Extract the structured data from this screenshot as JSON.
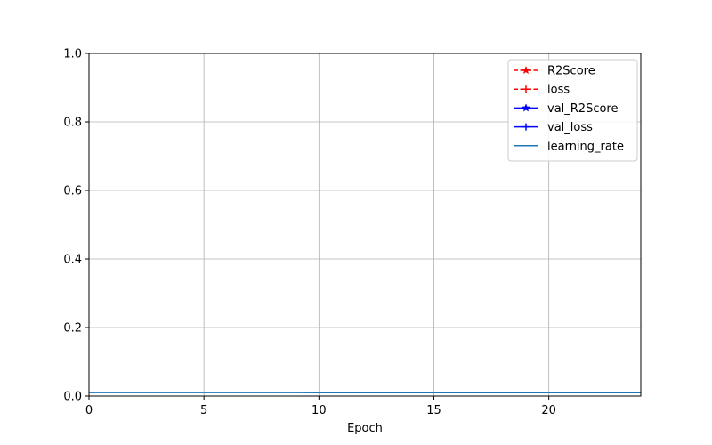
{
  "chart_data": {
    "type": "line",
    "title": "",
    "xlabel": "Epoch",
    "ylabel": "",
    "xlim": [
      0,
      24
    ],
    "ylim": [
      0,
      1
    ],
    "xticks": [
      0,
      5,
      10,
      15,
      20
    ],
    "yticks": [
      0.0,
      0.2,
      0.4,
      0.6,
      0.8,
      1.0
    ],
    "xtick_labels": [
      "0",
      "5",
      "10",
      "15",
      "20"
    ],
    "ytick_labels": [
      "0.0",
      "0.2",
      "0.4",
      "0.6",
      "0.8",
      "1.0"
    ],
    "grid": true,
    "legend_position": "top-right",
    "series": [
      {
        "name": "R2Score",
        "color": "#ff0000",
        "linestyle": "dashed",
        "marker": "star",
        "x": [],
        "values": []
      },
      {
        "name": "loss",
        "color": "#ff0000",
        "linestyle": "dashed",
        "marker": "plus",
        "x": [],
        "values": []
      },
      {
        "name": "val_R2Score",
        "color": "#0000ff",
        "linestyle": "solid",
        "marker": "star",
        "x": [],
        "values": []
      },
      {
        "name": "val_loss",
        "color": "#0000ff",
        "linestyle": "solid",
        "marker": "plus",
        "x": [],
        "values": []
      },
      {
        "name": "learning_rate",
        "color": "#1f77b4",
        "linestyle": "solid",
        "marker": "none",
        "x": [
          0,
          1,
          2,
          3,
          4,
          5,
          6,
          7,
          8,
          9,
          10,
          11,
          12,
          13,
          14,
          15,
          16,
          17,
          18,
          19,
          20,
          21,
          22,
          23,
          24
        ],
        "values": [
          0.01,
          0.01,
          0.01,
          0.01,
          0.01,
          0.01,
          0.01,
          0.01,
          0.01,
          0.01,
          0.0099,
          0.0099,
          0.0099,
          0.0099,
          0.0099,
          0.0098,
          0.0098,
          0.0098,
          0.0098,
          0.0098,
          0.0097,
          0.0097,
          0.0097,
          0.0097,
          0.0097
        ]
      }
    ]
  }
}
